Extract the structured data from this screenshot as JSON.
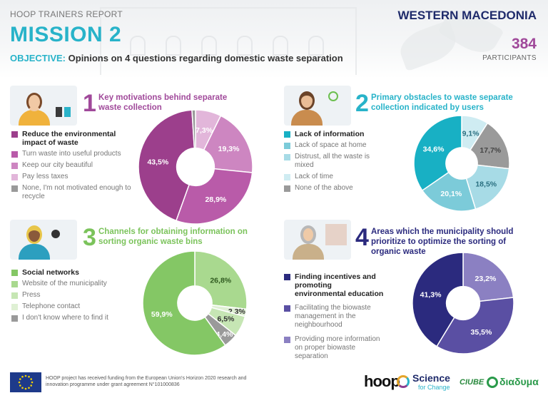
{
  "header": {
    "report": "HOOP TRAINERS REPORT",
    "region": "WESTERN MACEDONIA",
    "mission": "MISSION 2",
    "objective_label": "OBJECTIVE:",
    "objective_text": "Opinions on 4 questions regarding domestic waste separation",
    "participants_count": "384",
    "participants_label": "PARTICIPANTS"
  },
  "colors": {
    "mission": "#28b3c9",
    "q1": [
      "#9c3f8c",
      "#b95ba9",
      "#cd86c1",
      "#e2b6da",
      "#9a9a9a"
    ],
    "q2": [
      "#18b0c4",
      "#7ccbd9",
      "#a7dbe6",
      "#cfecf2",
      "#9a9a9a"
    ],
    "q3": [
      "#84c765",
      "#a9d98f",
      "#c6e6b4",
      "#dff0d4",
      "#9a9a9a"
    ],
    "q4": [
      "#2b2a7e",
      "#5a4fa3",
      "#8b80c2"
    ]
  },
  "chart_data": [
    {
      "type": "pie",
      "number": "1",
      "title": "Key motivations behind separate waste collection",
      "categories": [
        "Reduce the environmental impact of waste",
        "Turn waste into useful products",
        "Keep our city beautiful",
        "Pay less taxes",
        "None, I'm not motivated enough to recycle"
      ],
      "values": [
        43.5,
        28.9,
        19.3,
        7.3,
        1.0
      ],
      "labels": [
        "43,5%",
        "28,9%",
        "19,3%",
        "7,3%",
        ""
      ]
    },
    {
      "type": "pie",
      "number": "2",
      "title": "Primary obstacles to waste separate collection indicated by users",
      "categories": [
        "Lack of information",
        "Lack of space at home",
        "Distrust, all the waste is mixed",
        "Lack of time",
        "None of the above"
      ],
      "values": [
        34.6,
        20.1,
        18.5,
        9.1,
        17.7
      ],
      "labels": [
        "34,6%",
        "20,1%",
        "18,5%",
        "9,1%",
        "17,7%"
      ]
    },
    {
      "type": "pie",
      "number": "3",
      "title": "Channels for obtaining information on sorting organic waste bins",
      "categories": [
        "Social networks",
        "Website of the municipality",
        "Press",
        "Telephone contact",
        "I don't know where to find it"
      ],
      "values": [
        59.9,
        26.8,
        6.5,
        2.3,
        4.4
      ],
      "labels": [
        "59,9%",
        "26,8%",
        "6,5%",
        "2,3%",
        "4,4%"
      ]
    },
    {
      "type": "pie",
      "number": "4",
      "title": "Areas which the municipality should prioritize to optimize the sorting of organic waste",
      "categories": [
        "Finding incentives and promoting environmental education",
        "Facilitating the biowaste management in the neighbourhood",
        "Providing more information on proper biowaste separation"
      ],
      "values": [
        41.3,
        35.5,
        23.2
      ],
      "labels": [
        "41,3%",
        "35,5%",
        "23,2%"
      ]
    }
  ],
  "footer": {
    "funding_text": "HOOP project has received funding from the European Union's Horizon 2020 research and innovation programme under grant agreement N°101000836",
    "logo_hoop": "hoop",
    "logo_science": "Science",
    "logo_science_sub": "for Change",
    "logo_cmbe": "CIUBE",
    "logo_diadyma": "διαδυμα"
  }
}
